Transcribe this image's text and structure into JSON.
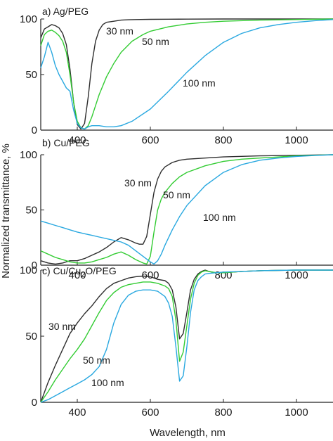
{
  "figure": {
    "xlabel": "Wavelength, nm",
    "ylabel": "Normalized transmittance, %"
  },
  "chart_data": [
    {
      "type": "line",
      "title": "a) Ag/PEG",
      "xlim": [
        300,
        1100
      ],
      "ylim": [
        0,
        100
      ],
      "xticks": [
        400,
        600,
        800,
        1000
      ],
      "yticks": [
        0,
        50,
        100
      ],
      "grid": false,
      "series": [
        {
          "name": "30 nm",
          "color": "#2e2e2e",
          "x": [
            300,
            310,
            320,
            330,
            340,
            350,
            360,
            370,
            380,
            390,
            400,
            410,
            420,
            430,
            440,
            450,
            460,
            470,
            480,
            500,
            520,
            540,
            560,
            600,
            650,
            700,
            800,
            900,
            1000,
            1100
          ],
          "y": [
            83,
            91,
            93,
            95,
            94,
            92,
            87,
            77,
            55,
            25,
            5,
            1,
            6,
            30,
            60,
            80,
            90,
            95,
            97,
            98,
            99,
            99.3,
            99.5,
            99.7,
            99.8,
            99.9,
            100,
            100,
            100,
            100
          ]
        },
        {
          "name": "50 nm",
          "color": "#33cc33",
          "x": [
            300,
            310,
            320,
            330,
            340,
            350,
            360,
            370,
            380,
            390,
            400,
            410,
            420,
            430,
            440,
            450,
            460,
            480,
            500,
            520,
            550,
            580,
            600,
            650,
            700,
            750,
            800,
            900,
            1000,
            1100
          ],
          "y": [
            76,
            86,
            89,
            90,
            88,
            85,
            80,
            70,
            50,
            25,
            8,
            2,
            1,
            4,
            12,
            22,
            32,
            48,
            60,
            70,
            80,
            86,
            89,
            93,
            95.5,
            97,
            98,
            99,
            99.5,
            100
          ]
        },
        {
          "name": "100 nm",
          "color": "#29a8e0",
          "x": [
            300,
            310,
            320,
            330,
            340,
            350,
            360,
            370,
            380,
            390,
            400,
            410,
            420,
            430,
            440,
            450,
            460,
            480,
            500,
            520,
            550,
            600,
            650,
            700,
            750,
            800,
            850,
            900,
            950,
            1000,
            1050,
            1100
          ],
          "y": [
            56,
            66,
            79,
            70,
            58,
            50,
            44,
            38,
            35,
            18,
            6,
            2,
            1,
            3,
            4,
            4,
            4,
            3,
            3,
            4,
            8,
            19,
            35,
            52,
            67,
            79,
            87,
            92,
            95,
            97,
            98.5,
            99.5
          ]
        }
      ],
      "annotations": [
        {
          "text": "30 nm",
          "series": "30 nm"
        },
        {
          "text": "50 nm",
          "series": "50 nm"
        },
        {
          "text": "100 nm",
          "series": "100 nm"
        }
      ]
    },
    {
      "type": "line",
      "title": "b) Cu/PEG",
      "xlim": [
        300,
        1100
      ],
      "ylim": [
        0,
        100
      ],
      "xticks": [
        400,
        600,
        800,
        1000
      ],
      "yticks": [
        0,
        50,
        100
      ],
      "grid": false,
      "series": [
        {
          "name": "30 nm",
          "color": "#2e2e2e",
          "x": [
            300,
            320,
            340,
            360,
            380,
            400,
            420,
            440,
            460,
            480,
            500,
            520,
            540,
            560,
            570,
            580,
            590,
            600,
            610,
            620,
            630,
            640,
            660,
            680,
            700,
            750,
            800,
            900,
            1000,
            1100
          ],
          "y": [
            4,
            2,
            1,
            2,
            4,
            4,
            6,
            9,
            12,
            16,
            21,
            25,
            23,
            20,
            19,
            19,
            26,
            46,
            66,
            78,
            85,
            89,
            93,
            95,
            96,
            97,
            98,
            99,
            99.5,
            100
          ]
        },
        {
          "name": "50 nm",
          "color": "#33cc33",
          "x": [
            300,
            320,
            340,
            360,
            380,
            400,
            420,
            440,
            460,
            480,
            500,
            520,
            540,
            560,
            580,
            590,
            600,
            610,
            620,
            630,
            640,
            660,
            680,
            700,
            750,
            800,
            850,
            900,
            1000,
            1100
          ],
          "y": [
            13,
            10,
            7,
            5,
            3,
            2,
            2,
            3,
            5,
            7,
            10,
            12,
            9,
            5,
            2,
            1,
            8,
            30,
            50,
            60,
            66,
            74,
            80,
            84,
            90,
            94,
            96,
            97,
            99,
            100
          ]
        },
        {
          "name": "100 nm",
          "color": "#29a8e0",
          "x": [
            300,
            320,
            340,
            360,
            380,
            400,
            420,
            440,
            460,
            480,
            500,
            520,
            540,
            560,
            580,
            600,
            610,
            620,
            630,
            640,
            660,
            680,
            700,
            750,
            800,
            850,
            900,
            950,
            1000,
            1050,
            1100
          ],
          "y": [
            40,
            38,
            36,
            34,
            32,
            30,
            28.5,
            27,
            25.5,
            24,
            22.5,
            21,
            18,
            13,
            8,
            3,
            1,
            4,
            10,
            18,
            32,
            44,
            54,
            72,
            84,
            91,
            95,
            97,
            98.5,
            99.3,
            100
          ]
        }
      ],
      "annotations": [
        {
          "text": "30 nm",
          "series": "30 nm"
        },
        {
          "text": "50 nm",
          "series": "50 nm"
        },
        {
          "text": "100 nm",
          "series": "100 nm"
        }
      ]
    },
    {
      "type": "line",
      "title_parts": {
        "lead": "c) Cu/Cu",
        "subscript": "2",
        "tail": "O/PEG"
      },
      "xlim": [
        300,
        1100
      ],
      "ylim": [
        0,
        100
      ],
      "xticks": [
        400,
        600,
        800,
        1000
      ],
      "yticks": [
        0,
        50,
        100
      ],
      "grid": false,
      "series": [
        {
          "name": "30 nm",
          "color": "#2e2e2e",
          "x": [
            300,
            320,
            340,
            360,
            380,
            400,
            420,
            440,
            460,
            480,
            500,
            520,
            540,
            560,
            580,
            600,
            620,
            640,
            650,
            660,
            670,
            680,
            690,
            700,
            710,
            720,
            730,
            740,
            750,
            760,
            780,
            800,
            850,
            900,
            1000,
            1100
          ],
          "y": [
            0,
            15,
            28,
            40,
            52,
            60,
            67,
            73,
            80,
            86,
            90,
            92,
            94,
            95,
            95.5,
            95,
            93,
            92,
            90,
            85,
            72,
            48,
            52,
            68,
            85,
            93,
            97,
            99,
            100,
            99,
            98,
            98,
            99,
            99.5,
            100,
            100
          ]
        },
        {
          "name": "50 nm",
          "color": "#33cc33",
          "x": [
            300,
            320,
            340,
            360,
            380,
            400,
            420,
            440,
            460,
            480,
            500,
            520,
            540,
            560,
            580,
            600,
            620,
            640,
            650,
            660,
            670,
            680,
            690,
            700,
            710,
            720,
            730,
            740,
            750,
            760,
            780,
            800,
            850,
            900,
            1000,
            1100
          ],
          "y": [
            0,
            8,
            17,
            25,
            33,
            40,
            48,
            58,
            68,
            77,
            83,
            87,
            89,
            90,
            91,
            91,
            90,
            88,
            86,
            80,
            62,
            31,
            38,
            58,
            78,
            90,
            96,
            98.5,
            99.5,
            99,
            98,
            98,
            99,
            99.5,
            100,
            100
          ]
        },
        {
          "name": "100 nm",
          "color": "#29a8e0",
          "x": [
            300,
            320,
            340,
            360,
            380,
            400,
            420,
            440,
            460,
            480,
            500,
            520,
            540,
            560,
            580,
            600,
            620,
            640,
            650,
            660,
            670,
            680,
            690,
            700,
            710,
            720,
            730,
            740,
            750,
            760,
            780,
            800,
            850,
            900,
            1000,
            1100
          ],
          "y": [
            0,
            2,
            5,
            8,
            11,
            14,
            17,
            21,
            27,
            40,
            60,
            74,
            81,
            84,
            85,
            85,
            84,
            80,
            75,
            65,
            42,
            16,
            20,
            42,
            68,
            85,
            92,
            95,
            97,
            97.5,
            98,
            98.5,
            99,
            99.5,
            100,
            100
          ]
        }
      ],
      "annotations": [
        {
          "text": "30 nm",
          "series": "30 nm"
        },
        {
          "text": "50 nm",
          "series": "50 nm"
        },
        {
          "text": "100 nm",
          "series": "100 nm"
        }
      ]
    }
  ]
}
